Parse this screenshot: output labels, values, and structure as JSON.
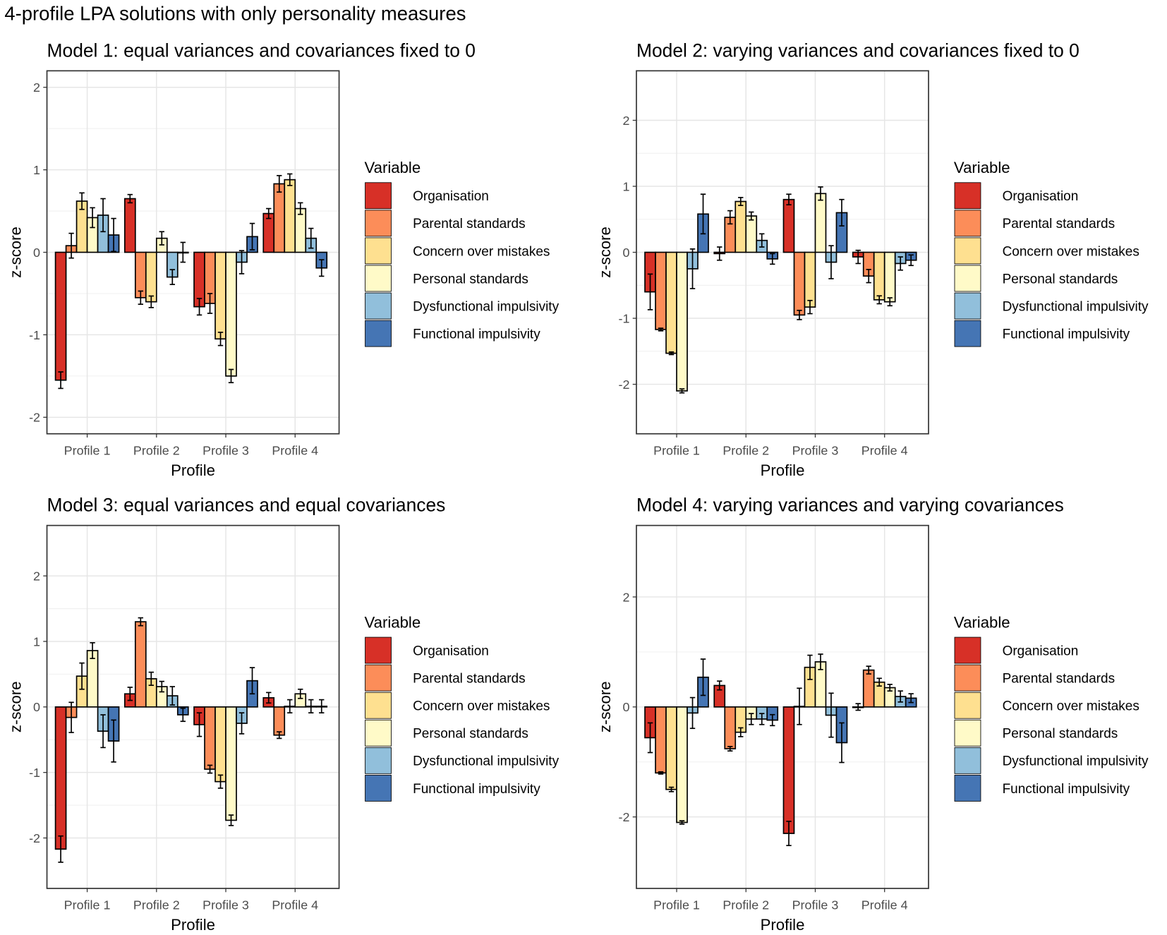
{
  "title": "4-profile LPA solutions with only personality measures",
  "colors": {
    "Organisation": "#d73027",
    "Parental standards": "#fc8d59",
    "Concern over mistakes": "#fee090",
    "Personal standards": "#fffac8",
    "Dysfunctional impulsivity": "#91bfdb",
    "Functional impulsivity": "#4575b4"
  },
  "chart_data": [
    {
      "type": "bar",
      "title": "Model 1: equal variances and covariances fixed to 0",
      "xlabel": "Profile",
      "ylabel": "z-score",
      "ylim": [
        -2.2,
        2.2
      ],
      "yticks": [
        -2,
        -1,
        0,
        1,
        2
      ],
      "categories": [
        "Profile 1",
        "Profile 2",
        "Profile 3",
        "Profile 4"
      ],
      "legend_title": "Variable",
      "legend": "right",
      "series": [
        {
          "name": "Organisation",
          "values": [
            -1.55,
            0.65,
            -0.66,
            0.47
          ],
          "errors": [
            0.1,
            0.05,
            0.1,
            0.06
          ]
        },
        {
          "name": "Parental standards",
          "values": [
            0.08,
            -0.55,
            -0.62,
            0.83
          ],
          "errors": [
            0.15,
            0.08,
            0.12,
            0.1
          ]
        },
        {
          "name": "Concern over mistakes",
          "values": [
            0.62,
            -0.6,
            -1.05,
            0.88
          ],
          "errors": [
            0.1,
            0.07,
            0.08,
            0.07
          ]
        },
        {
          "name": "Personal standards",
          "values": [
            0.42,
            0.17,
            -1.5,
            0.53
          ],
          "errors": [
            0.12,
            0.08,
            0.08,
            0.07
          ]
        },
        {
          "name": "Dysfunctional impulsivity",
          "values": [
            0.45,
            -0.3,
            -0.12,
            0.17
          ],
          "errors": [
            0.2,
            0.09,
            0.14,
            0.12
          ]
        },
        {
          "name": "Functional impulsivity",
          "values": [
            0.21,
            0.0,
            0.19,
            -0.19
          ],
          "errors": [
            0.2,
            0.12,
            0.16,
            0.1
          ]
        }
      ]
    },
    {
      "type": "bar",
      "title": "Model 2: varying variances and covariances fixed to 0",
      "xlabel": "Profile",
      "ylabel": "z-score",
      "ylim": [
        -2.75,
        2.75
      ],
      "yticks": [
        -2,
        -1,
        0,
        1,
        2
      ],
      "categories": [
        "Profile 1",
        "Profile 2",
        "Profile 3",
        "Profile 4"
      ],
      "legend_title": "Variable",
      "legend": "right",
      "series": [
        {
          "name": "Organisation",
          "values": [
            -0.6,
            -0.02,
            0.8,
            -0.07
          ],
          "errors": [
            0.27,
            0.1,
            0.08,
            0.1
          ]
        },
        {
          "name": "Parental standards",
          "values": [
            -1.17,
            0.53,
            -0.95,
            -0.36
          ],
          "errors": [
            0.02,
            0.1,
            0.07,
            0.1
          ]
        },
        {
          "name": "Concern over mistakes",
          "values": [
            -1.53,
            0.77,
            -0.83,
            -0.72
          ],
          "errors": [
            0.02,
            0.06,
            0.1,
            0.06
          ]
        },
        {
          "name": "Personal standards",
          "values": [
            -2.1,
            0.55,
            0.89,
            -0.75
          ],
          "errors": [
            0.03,
            0.06,
            0.1,
            0.06
          ]
        },
        {
          "name": "Dysfunctional impulsivity",
          "values": [
            -0.25,
            0.18,
            -0.15,
            -0.17
          ],
          "errors": [
            0.3,
            0.1,
            0.25,
            0.1
          ]
        },
        {
          "name": "Functional impulsivity",
          "values": [
            0.58,
            -0.1,
            0.6,
            -0.12
          ],
          "errors": [
            0.3,
            0.08,
            0.2,
            0.08
          ]
        }
      ]
    },
    {
      "type": "bar",
      "title": "Model 3: equal variances and equal covariances",
      "xlabel": "Profile",
      "ylabel": "z-score",
      "ylim": [
        -2.77,
        2.77
      ],
      "yticks": [
        -2,
        -1,
        0,
        1,
        2
      ],
      "categories": [
        "Profile 1",
        "Profile 2",
        "Profile 3",
        "Profile 4"
      ],
      "legend_title": "Variable",
      "legend": "right",
      "series": [
        {
          "name": "Organisation",
          "values": [
            -2.17,
            0.2,
            -0.27,
            0.14
          ],
          "errors": [
            0.2,
            0.1,
            0.18,
            0.08
          ]
        },
        {
          "name": "Parental standards",
          "values": [
            -0.16,
            1.3,
            -0.95,
            -0.43
          ],
          "errors": [
            0.23,
            0.06,
            0.06,
            0.05
          ]
        },
        {
          "name": "Concern over mistakes",
          "values": [
            0.47,
            0.43,
            -1.14,
            0.01
          ],
          "errors": [
            0.2,
            0.1,
            0.1,
            0.1
          ]
        },
        {
          "name": "Personal standards",
          "values": [
            0.86,
            0.31,
            -1.73,
            0.2
          ],
          "errors": [
            0.12,
            0.08,
            0.08,
            0.07
          ]
        },
        {
          "name": "Dysfunctional impulsivity",
          "values": [
            -0.37,
            0.17,
            -0.25,
            0.01
          ],
          "errors": [
            0.25,
            0.14,
            0.16,
            0.1
          ]
        },
        {
          "name": "Functional impulsivity",
          "values": [
            -0.52,
            -0.12,
            0.4,
            0.01
          ],
          "errors": [
            0.32,
            0.1,
            0.2,
            0.1
          ]
        }
      ]
    },
    {
      "type": "bar",
      "title": "Model 4: varying variances and varying covariances",
      "xlabel": "Profile",
      "ylabel": "z-score",
      "ylim": [
        -3.3,
        3.3
      ],
      "yticks": [
        -2,
        0,
        2
      ],
      "categories": [
        "Profile 1",
        "Profile 2",
        "Profile 3",
        "Profile 4"
      ],
      "legend_title": "Variable",
      "legend": "right",
      "series": [
        {
          "name": "Organisation",
          "values": [
            -0.56,
            0.39,
            -2.3,
            0.0
          ],
          "errors": [
            0.27,
            0.08,
            0.22,
            0.06
          ]
        },
        {
          "name": "Parental standards",
          "values": [
            -1.2,
            -0.76,
            0.01,
            0.67
          ],
          "errors": [
            0.02,
            0.04,
            0.33,
            0.07
          ]
        },
        {
          "name": "Concern over mistakes",
          "values": [
            -1.5,
            -0.46,
            0.72,
            0.45
          ],
          "errors": [
            0.04,
            0.08,
            0.22,
            0.07
          ]
        },
        {
          "name": "Personal standards",
          "values": [
            -2.1,
            -0.22,
            0.82,
            0.35
          ],
          "errors": [
            0.03,
            0.1,
            0.14,
            0.06
          ]
        },
        {
          "name": "Dysfunctional impulsivity",
          "values": [
            -0.11,
            -0.22,
            -0.15,
            0.19
          ],
          "errors": [
            0.28,
            0.1,
            0.4,
            0.1
          ]
        },
        {
          "name": "Functional impulsivity",
          "values": [
            0.54,
            -0.24,
            -0.65,
            0.16
          ],
          "errors": [
            0.33,
            0.1,
            0.36,
            0.08
          ]
        }
      ]
    }
  ]
}
